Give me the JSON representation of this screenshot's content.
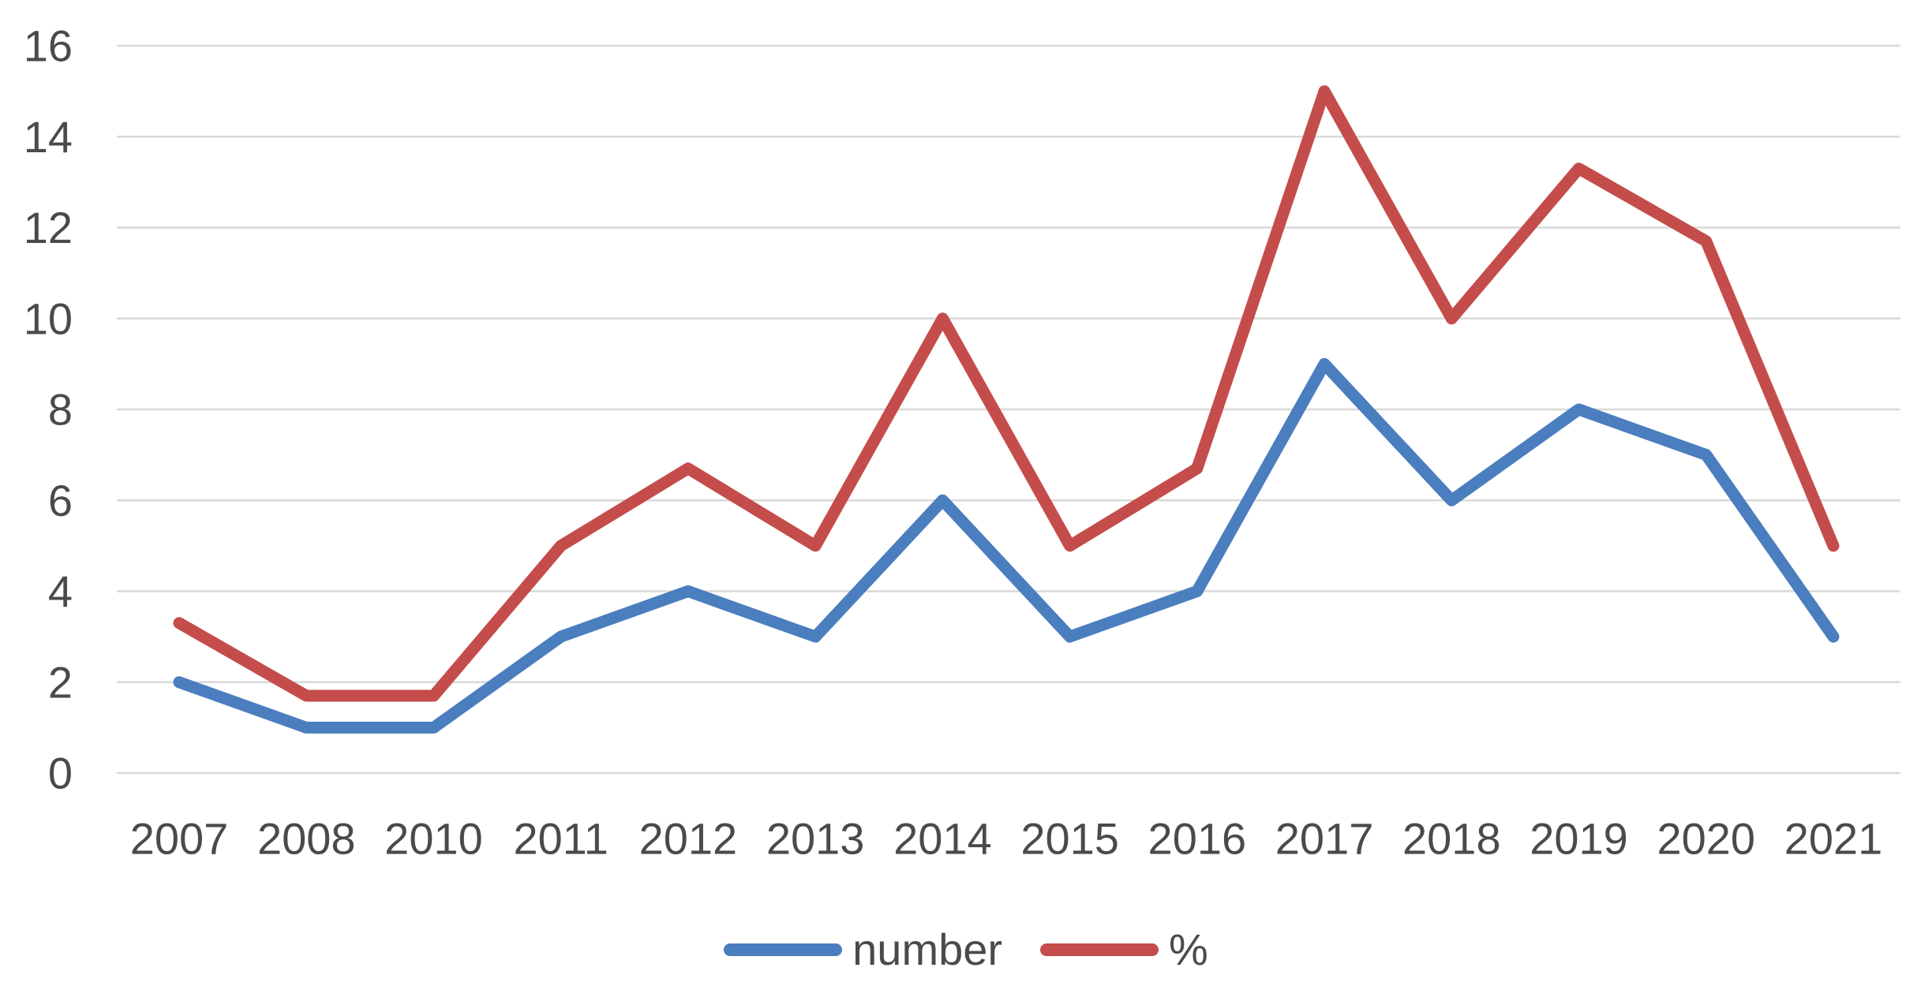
{
  "chart_data": {
    "type": "line",
    "title": "",
    "xlabel": "",
    "ylabel": "",
    "categories": [
      "2007",
      "2008",
      "2010",
      "2011",
      "2012",
      "2013",
      "2014",
      "2015",
      "2016",
      "2017",
      "2018",
      "2019",
      "2020",
      "2021"
    ],
    "series": [
      {
        "name": "number",
        "color": "#4A7EBF",
        "values": [
          2,
          1,
          1,
          3,
          4,
          3,
          6,
          3,
          4,
          9,
          6,
          8,
          7,
          3
        ]
      },
      {
        "name": "%",
        "color": "#C44D4B",
        "values": [
          3.3,
          1.7,
          1.7,
          5,
          6.7,
          5,
          10,
          5,
          6.7,
          15,
          10,
          13.3,
          11.7,
          5
        ]
      }
    ],
    "ylim": [
      0,
      16
    ],
    "yticks": [
      0,
      2,
      4,
      6,
      8,
      10,
      12,
      14,
      16
    ],
    "grid": true,
    "legend_position": "bottom-center",
    "colors": {
      "gridline": "#D9D9D9",
      "axis_text": "#4A4A4A",
      "background": "#FFFFFF"
    }
  }
}
